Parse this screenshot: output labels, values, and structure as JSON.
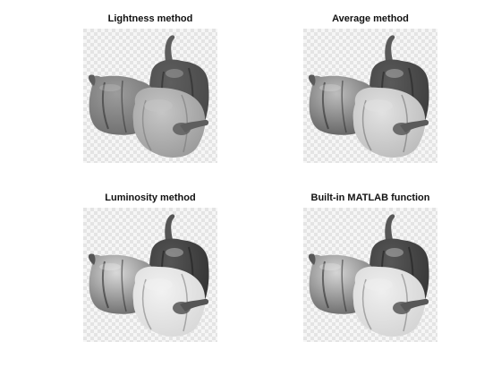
{
  "figure": {
    "panels": [
      {
        "title": "Lightness method",
        "tones": {
          "left": "#6f6f6f",
          "back": "#484848",
          "front": "#9c9c9c",
          "shadow": "#2a2a2a",
          "stem": "#5e5e5e",
          "highlight": "#c6c6c6"
        }
      },
      {
        "title": "Average method",
        "tones": {
          "left": "#626262",
          "back": "#3d3d3d",
          "front": "#bdbdbd",
          "shadow": "#242424",
          "stem": "#5a5a5a",
          "highlight": "#e2e2e2"
        }
      },
      {
        "title": "Luminosity method",
        "tones": {
          "left": "#6c6c6c",
          "back": "#333333",
          "front": "#d9d9d9",
          "shadow": "#1f1f1f",
          "stem": "#555555",
          "highlight": "#f2f2f2"
        }
      },
      {
        "title": "Built-in MATLAB function",
        "tones": {
          "left": "#6a6a6a",
          "back": "#363636",
          "front": "#d5d5d5",
          "shadow": "#202020",
          "stem": "#575757",
          "highlight": "#efefef"
        }
      }
    ]
  }
}
